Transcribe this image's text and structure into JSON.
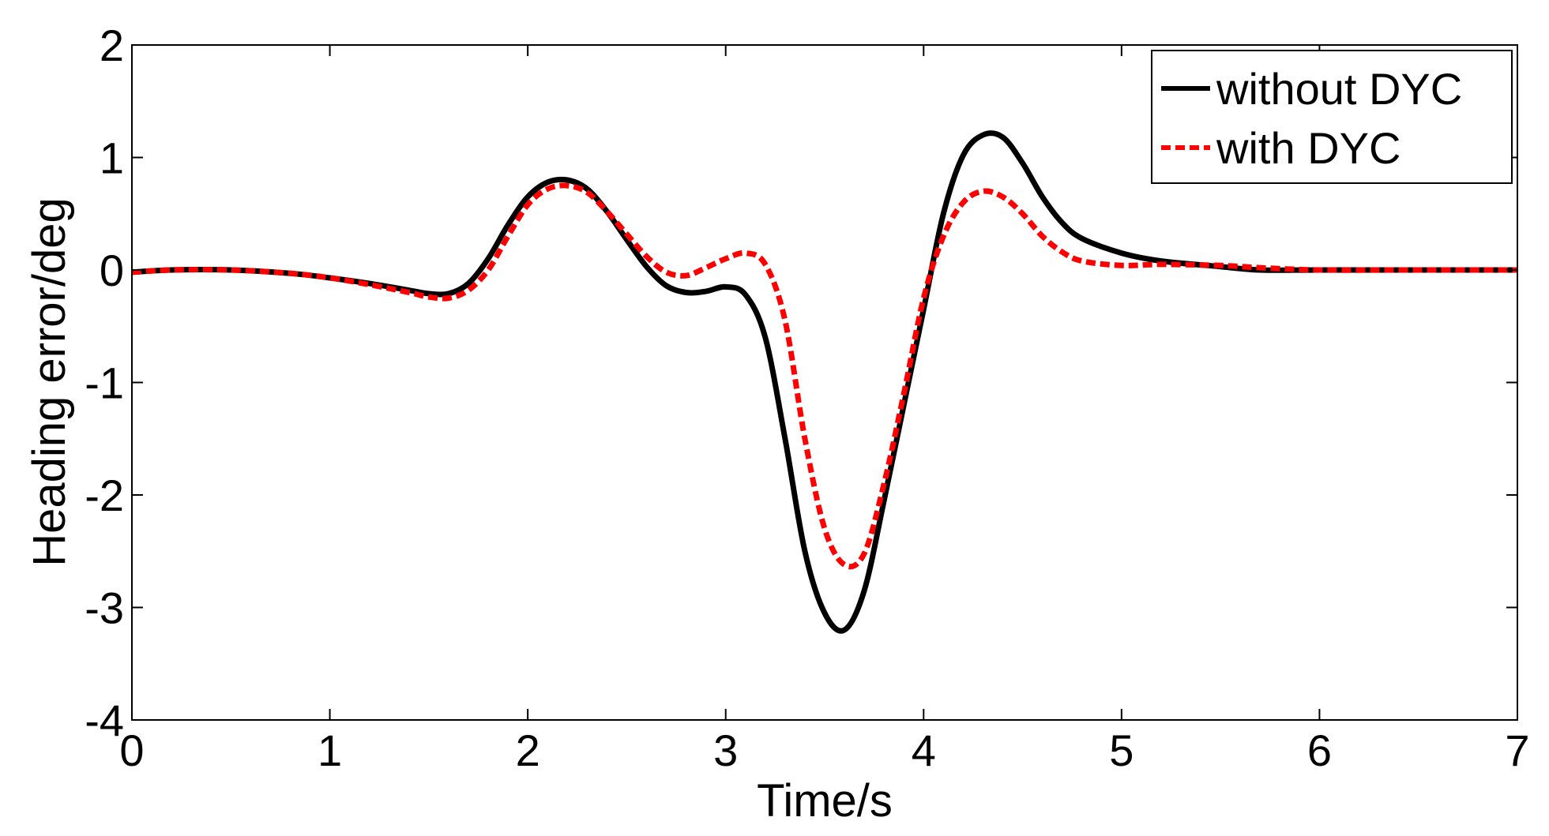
{
  "chart_data": {
    "type": "line",
    "title": "",
    "xlabel": "Time/s",
    "ylabel": "Heading error/deg",
    "xlim": [
      0,
      7
    ],
    "ylim": [
      -4,
      2
    ],
    "xticks": [
      0,
      1,
      2,
      3,
      4,
      5,
      6,
      7
    ],
    "yticks": [
      -4,
      -3,
      -2,
      -1,
      0,
      1,
      2
    ],
    "grid": false,
    "legend_position": "top-right",
    "series": [
      {
        "name": "without DYC",
        "color": "#000000",
        "style": "solid",
        "x": [
          0,
          0.2,
          0.5,
          0.8,
          1.0,
          1.2,
          1.4,
          1.5,
          1.6,
          1.7,
          1.8,
          1.9,
          2.0,
          2.1,
          2.2,
          2.3,
          2.4,
          2.5,
          2.6,
          2.7,
          2.8,
          2.9,
          3.0,
          3.1,
          3.2,
          3.3,
          3.4,
          3.5,
          3.6,
          3.7,
          3.8,
          3.9,
          4.0,
          4.1,
          4.2,
          4.3,
          4.4,
          4.5,
          4.6,
          4.7,
          4.8,
          5.0,
          5.2,
          5.5,
          5.7,
          6.0,
          6.5,
          7.0
        ],
        "y": [
          -0.02,
          0.0,
          0.0,
          -0.03,
          -0.07,
          -0.12,
          -0.18,
          -0.21,
          -0.21,
          -0.12,
          0.1,
          0.4,
          0.65,
          0.78,
          0.8,
          0.72,
          0.52,
          0.27,
          0.03,
          -0.14,
          -0.2,
          -0.19,
          -0.15,
          -0.22,
          -0.6,
          -1.5,
          -2.5,
          -3.05,
          -3.2,
          -2.85,
          -2.05,
          -1.2,
          -0.35,
          0.5,
          1.02,
          1.2,
          1.18,
          0.95,
          0.65,
          0.42,
          0.28,
          0.15,
          0.08,
          0.03,
          0.0,
          0.0,
          0.0,
          0.0
        ]
      },
      {
        "name": "with DYC",
        "color": "#ff0000",
        "style": "dashed",
        "x": [
          0,
          0.2,
          0.5,
          0.8,
          1.0,
          1.2,
          1.4,
          1.5,
          1.6,
          1.7,
          1.8,
          1.9,
          2.0,
          2.1,
          2.2,
          2.3,
          2.4,
          2.5,
          2.6,
          2.7,
          2.8,
          2.9,
          3.0,
          3.1,
          3.2,
          3.3,
          3.4,
          3.5,
          3.6,
          3.7,
          3.8,
          3.9,
          4.0,
          4.1,
          4.2,
          4.3,
          4.4,
          4.5,
          4.6,
          4.7,
          4.8,
          5.0,
          5.2,
          5.5,
          5.7,
          6.0,
          6.5,
          7.0
        ],
        "y": [
          -0.02,
          0.0,
          0.0,
          -0.03,
          -0.07,
          -0.13,
          -0.2,
          -0.24,
          -0.25,
          -0.18,
          0.0,
          0.3,
          0.58,
          0.72,
          0.75,
          0.69,
          0.52,
          0.32,
          0.12,
          -0.02,
          -0.05,
          0.02,
          0.1,
          0.15,
          0.05,
          -0.45,
          -1.5,
          -2.3,
          -2.62,
          -2.52,
          -1.9,
          -1.1,
          -0.25,
          0.3,
          0.6,
          0.7,
          0.65,
          0.5,
          0.3,
          0.16,
          0.08,
          0.04,
          0.05,
          0.04,
          0.02,
          0.0,
          0.0,
          0.0
        ]
      }
    ]
  }
}
